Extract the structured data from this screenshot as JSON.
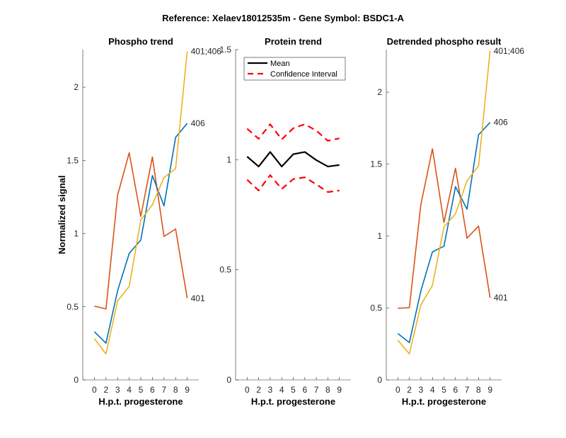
{
  "title": "Reference:  Xelaev18012535m - Gene Symbol:  BSDC1-A",
  "colors": {
    "s401": "#D95319",
    "s406": "#0072BD",
    "s401_406": "#EDB120",
    "mean": "#000000",
    "ci": "#FF0000"
  },
  "chart_data": [
    {
      "type": "line",
      "title": "Phospho trend",
      "xlabel": "H.p.t. progesterone",
      "ylabel": "Normalized signal",
      "categories": [
        "0",
        "2",
        "3",
        "4",
        "5",
        "6",
        "7",
        "8",
        "9"
      ],
      "xlim": [
        0,
        10
      ],
      "ylim": [
        0,
        2.257
      ],
      "yticks": [
        "0",
        "0.5",
        "1",
        "1.5",
        "2"
      ],
      "series": [
        {
          "name": "401",
          "color": "#D95319",
          "values": [
            0.504,
            0.485,
            1.262,
            1.552,
            1.117,
            1.523,
            0.98,
            1.031,
            0.558
          ]
        },
        {
          "name": "406",
          "color": "#0072BD",
          "values": [
            0.329,
            0.251,
            0.609,
            0.864,
            0.956,
            1.396,
            1.189,
            1.657,
            1.753
          ]
        },
        {
          "name": "401;406",
          "color": "#EDB120",
          "values": [
            0.282,
            0.177,
            0.54,
            0.638,
            1.093,
            1.197,
            1.383,
            1.444,
            2.245
          ]
        }
      ]
    },
    {
      "type": "line",
      "title": "Protein trend",
      "xlabel": "H.p.t. progesterone",
      "ylabel": "",
      "categories": [
        "0",
        "2",
        "3",
        "4",
        "5",
        "6",
        "7",
        "8",
        "9"
      ],
      "xlim": [
        0,
        10
      ],
      "ylim": [
        0,
        1.5
      ],
      "yticks": [
        "0",
        "0.5",
        "1",
        "1.5"
      ],
      "legend": {
        "placement": "top-left",
        "entries": [
          "Mean",
          "Confidence Interval"
        ]
      },
      "series": [
        {
          "name": "Mean",
          "color": "#000000",
          "style": "solid",
          "values": [
            1.014,
            0.969,
            1.035,
            0.969,
            1.025,
            1.035,
            0.998,
            0.969,
            0.976
          ]
        },
        {
          "name": "Confidence Interval",
          "color": "#FF0000",
          "style": "dashed",
          "values": [
            1.141,
            1.095,
            1.161,
            1.092,
            1.143,
            1.161,
            1.132,
            1.086,
            1.097
          ]
        },
        {
          "name": "Confidence Interval (lower)",
          "color": "#FF0000",
          "style": "dashed",
          "values": [
            0.909,
            0.86,
            0.93,
            0.867,
            0.912,
            0.92,
            0.888,
            0.853,
            0.86
          ]
        }
      ]
    },
    {
      "type": "line",
      "title": "Detrended phospho result",
      "xlabel": "H.p.t. progesterone",
      "ylabel": "",
      "categories": [
        "0",
        "2",
        "3",
        "4",
        "5",
        "6",
        "7",
        "8",
        "9"
      ],
      "xlim": [
        0,
        10
      ],
      "ylim": [
        0,
        2.296
      ],
      "yticks": [
        "0",
        "0.5",
        "1",
        "1.5",
        "2"
      ],
      "series": [
        {
          "name": "401",
          "color": "#D95319",
          "values": [
            0.498,
            0.502,
            1.22,
            1.606,
            1.094,
            1.471,
            0.985,
            1.069,
            0.571
          ]
        },
        {
          "name": "406",
          "color": "#0072BD",
          "values": [
            0.322,
            0.259,
            0.62,
            0.89,
            0.929,
            1.343,
            1.187,
            1.704,
            1.79
          ]
        },
        {
          "name": "401;406",
          "color": "#EDB120",
          "values": [
            0.276,
            0.181,
            0.522,
            0.657,
            1.064,
            1.154,
            1.384,
            1.488,
            2.287
          ]
        }
      ]
    }
  ]
}
